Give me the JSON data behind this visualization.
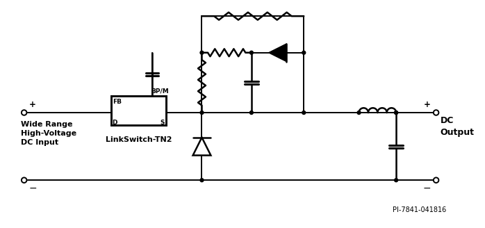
{
  "fig_width": 6.98,
  "fig_height": 3.28,
  "dpi": 100,
  "bg_color": "#ffffff",
  "line_color": "#000000",
  "lw": 1.4,
  "clw": 1.8,
  "labels": {
    "wide_range": [
      "Wide Range",
      "High-Voltage",
      "DC Input"
    ],
    "dc_output": [
      "DC",
      "Output"
    ],
    "linkswitch": "LinkSwitch-TN2",
    "fb": "FB",
    "bpm": "BP/M",
    "d": "D",
    "s": "S",
    "plus_left": "+",
    "minus_left": "−",
    "plus_right": "+",
    "minus_right": "−",
    "pi_number": "PI-7841-041816"
  }
}
